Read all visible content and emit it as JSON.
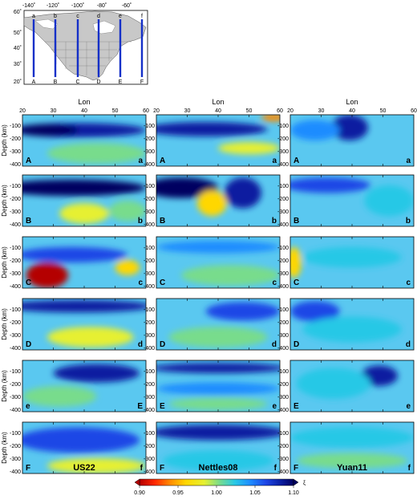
{
  "inset_map": {
    "lon_labels": [
      "-140˚",
      "-120˚",
      "-100˚",
      "-80˚",
      "-60˚"
    ],
    "lat_labels": [
      "60˚",
      "50˚",
      "40˚",
      "30˚",
      "20˚"
    ],
    "profile_top_labels": [
      "a",
      "b",
      "c",
      "d",
      "e",
      "f"
    ],
    "profile_bottom_labels": [
      "A",
      "B",
      "C",
      "D",
      "E",
      "F"
    ],
    "colors": {
      "ocean": "#ffffff",
      "land": "#c8c8c8",
      "profile_line": "#1530c8"
    }
  },
  "column_headers": [
    "Lon",
    "Lon",
    "Lon"
  ],
  "x_ticks": [
    "20",
    "30",
    "40",
    "50",
    "60"
  ],
  "y_ticks": [
    "-100",
    "-200",
    "-300",
    "-400"
  ],
  "y_axis_title": "Depth (km)",
  "models": [
    "US22",
    "Nettles08",
    "Yuan11"
  ],
  "rows": [
    {
      "left": "A",
      "right": "a",
      "row_left_by_model": [
        "A",
        "A",
        "A"
      ],
      "row_right_by_model": [
        "a",
        "a",
        "a"
      ]
    },
    {
      "left": "B",
      "right": "b",
      "row_left_by_model": [
        "B",
        "B",
        "B"
      ],
      "row_right_by_model": [
        "b",
        "b",
        "b"
      ]
    },
    {
      "left": "C",
      "right": "c",
      "row_left_by_model": [
        "C",
        "C",
        "C"
      ],
      "row_right_by_model": [
        "c",
        "c",
        "c"
      ]
    },
    {
      "left": "D",
      "right": "d",
      "row_left_by_model": [
        "D",
        "D",
        "D"
      ],
      "row_right_by_model": [
        "d",
        "d",
        "d"
      ]
    },
    {
      "left": "e",
      "right": "E",
      "row_left_by_model": [
        "e",
        "E",
        "E"
      ],
      "row_right_by_model": [
        "E",
        "e",
        "e"
      ]
    },
    {
      "left": "F",
      "right": "f",
      "row_left_by_model": [
        "F",
        "F",
        "F"
      ],
      "row_right_by_model": [
        "f",
        "f",
        "f"
      ]
    }
  ],
  "colorbar": {
    "ticks": [
      "0.90",
      "0.95",
      "1.00",
      "1.05",
      "1.10"
    ],
    "symbol": "ξ",
    "colors": [
      "#b40000",
      "#ff2800",
      "#ff8c00",
      "#ffd700",
      "#e6f032",
      "#78dc8c",
      "#28c8e6",
      "#1e8cff",
      "#1e46e6",
      "#0a1ea0",
      "#000060"
    ]
  }
}
